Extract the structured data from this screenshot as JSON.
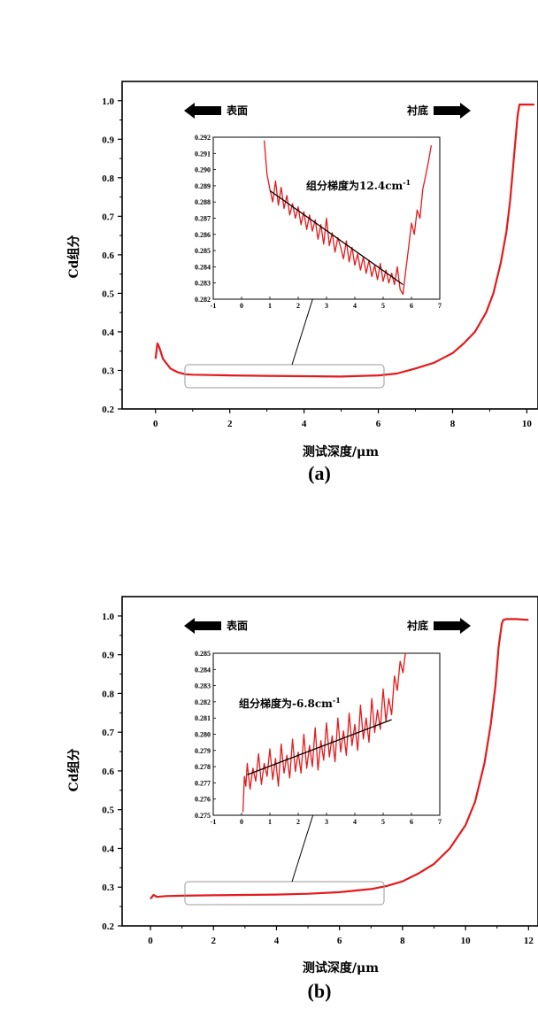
{
  "chart_data": [
    {
      "type": "line",
      "panel_label": "(a)",
      "xlabel": "测试深度/μm",
      "ylabel": "Cd组分",
      "xlim": [
        -0.9,
        10.3
      ],
      "ylim": [
        0.2,
        1.05
      ],
      "x_ticks": [
        0,
        2,
        4,
        6,
        8,
        10
      ],
      "y_ticks": [
        0.2,
        0.3,
        0.4,
        0.5,
        0.6,
        0.7,
        0.8,
        0.9,
        1.0
      ],
      "surface_label": "表面",
      "substrate_label": "衬底",
      "line_color": "#e41a1c",
      "series": [
        {
          "x": [
            0.0,
            0.05,
            0.1,
            0.2,
            0.4,
            0.6,
            0.8,
            1.0,
            1.5,
            2.0,
            3.0,
            4.0,
            5.0,
            6.0,
            6.5,
            7.0,
            7.5,
            8.0,
            8.3,
            8.6,
            8.9,
            9.1,
            9.3,
            9.45,
            9.55,
            9.65,
            9.75,
            9.8,
            10.0,
            10.2
          ],
          "y": [
            0.33,
            0.37,
            0.36,
            0.33,
            0.305,
            0.295,
            0.29,
            0.289,
            0.288,
            0.287,
            0.286,
            0.285,
            0.284,
            0.287,
            0.292,
            0.305,
            0.32,
            0.345,
            0.37,
            0.4,
            0.45,
            0.5,
            0.58,
            0.66,
            0.74,
            0.85,
            0.96,
            0.99,
            0.99,
            0.99
          ]
        }
      ],
      "inset": {
        "xlim": [
          -1,
          7
        ],
        "ylim": [
          0.282,
          0.292
        ],
        "x_ticks": [
          -1,
          0,
          1,
          2,
          3,
          4,
          5,
          6,
          7
        ],
        "y_ticks": [
          0.282,
          0.283,
          0.284,
          0.285,
          0.286,
          0.287,
          0.288,
          0.289,
          0.29,
          0.291,
          0.292
        ],
        "annotation": "组分梯度为12.4cm",
        "annotation_sup": "-1",
        "fit_line": {
          "x": [
            1.0,
            5.7
          ],
          "y": [
            0.2887,
            0.2829
          ]
        },
        "series_x": [
          0.8,
          0.9,
          1.0,
          1.1,
          1.2,
          1.3,
          1.4,
          1.5,
          1.6,
          1.7,
          1.8,
          1.9,
          2.0,
          2.1,
          2.2,
          2.3,
          2.4,
          2.5,
          2.6,
          2.7,
          2.8,
          2.9,
          3.0,
          3.1,
          3.2,
          3.3,
          3.4,
          3.5,
          3.6,
          3.7,
          3.8,
          3.9,
          4.0,
          4.1,
          4.2,
          4.3,
          4.4,
          4.5,
          4.6,
          4.7,
          4.8,
          4.9,
          5.0,
          5.1,
          5.2,
          5.3,
          5.4,
          5.5,
          5.6,
          5.7,
          5.8,
          5.9,
          6.0,
          6.1,
          6.2,
          6.3,
          6.4,
          6.5,
          6.6,
          6.7
        ],
        "series_y": [
          0.2918,
          0.2897,
          0.2888,
          0.288,
          0.2893,
          0.2878,
          0.2889,
          0.2876,
          0.2884,
          0.2872,
          0.2879,
          0.287,
          0.2877,
          0.2866,
          0.2874,
          0.2863,
          0.2872,
          0.2862,
          0.2869,
          0.2857,
          0.2866,
          0.2854,
          0.287,
          0.2853,
          0.2861,
          0.2849,
          0.2858,
          0.2852,
          0.2845,
          0.2856,
          0.2843,
          0.2852,
          0.2841,
          0.2848,
          0.2838,
          0.2846,
          0.2836,
          0.2844,
          0.2834,
          0.2841,
          0.2832,
          0.2842,
          0.2831,
          0.2838,
          0.283,
          0.2836,
          0.2829,
          0.284,
          0.2826,
          0.2823,
          0.2838,
          0.2852,
          0.2867,
          0.286,
          0.2875,
          0.287,
          0.2888,
          0.2896,
          0.2905,
          0.2915
        ]
      }
    },
    {
      "type": "line",
      "panel_label": "(b)",
      "xlabel": "测试深度/μm",
      "ylabel": "Cd组分",
      "xlim": [
        -0.9,
        12.3
      ],
      "ylim": [
        0.2,
        1.05
      ],
      "x_ticks": [
        0,
        2,
        4,
        6,
        8,
        10,
        12
      ],
      "y_ticks": [
        0.2,
        0.3,
        0.4,
        0.5,
        0.6,
        0.7,
        0.8,
        0.9,
        1.0
      ],
      "surface_label": "表面",
      "substrate_label": "衬底",
      "line_color": "#e41a1c",
      "series": [
        {
          "x": [
            0.0,
            0.1,
            0.2,
            0.5,
            1.0,
            2.0,
            3.0,
            4.0,
            5.0,
            6.0,
            7.0,
            7.5,
            8.0,
            8.5,
            9.0,
            9.5,
            10.0,
            10.3,
            10.6,
            10.8,
            10.95,
            11.05,
            11.15,
            11.2,
            11.3,
            11.6,
            12.0
          ],
          "y": [
            0.27,
            0.28,
            0.275,
            0.277,
            0.278,
            0.279,
            0.28,
            0.281,
            0.283,
            0.287,
            0.295,
            0.303,
            0.315,
            0.335,
            0.36,
            0.4,
            0.46,
            0.52,
            0.62,
            0.72,
            0.82,
            0.92,
            0.98,
            0.99,
            0.992,
            0.992,
            0.99
          ]
        }
      ],
      "inset": {
        "xlim": [
          -1,
          7
        ],
        "ylim": [
          0.275,
          0.285
        ],
        "x_ticks": [
          -1,
          0,
          1,
          2,
          3,
          4,
          5,
          6,
          7
        ],
        "y_ticks": [
          0.275,
          0.276,
          0.277,
          0.278,
          0.279,
          0.28,
          0.281,
          0.282,
          0.283,
          0.284,
          0.285
        ],
        "annotation": "组分梯度为-6.8cm",
        "annotation_sup": "-1",
        "fit_line": {
          "x": [
            0.2,
            5.3
          ],
          "y": [
            0.2775,
            0.2809
          ]
        },
        "series_x": [
          0.05,
          0.1,
          0.15,
          0.2,
          0.3,
          0.4,
          0.5,
          0.6,
          0.7,
          0.8,
          0.9,
          1.0,
          1.1,
          1.2,
          1.3,
          1.4,
          1.5,
          1.6,
          1.7,
          1.8,
          1.9,
          2.0,
          2.1,
          2.2,
          2.3,
          2.4,
          2.5,
          2.6,
          2.7,
          2.8,
          2.9,
          3.0,
          3.1,
          3.2,
          3.3,
          3.4,
          3.5,
          3.6,
          3.7,
          3.8,
          3.9,
          4.0,
          4.1,
          4.2,
          4.3,
          4.4,
          4.5,
          4.6,
          4.7,
          4.8,
          4.9,
          5.0,
          5.1,
          5.2,
          5.3,
          5.4,
          5.5,
          5.6,
          5.7,
          5.8
        ],
        "series_y": [
          0.2752,
          0.2774,
          0.2768,
          0.2782,
          0.2766,
          0.2779,
          0.2771,
          0.2788,
          0.2769,
          0.2782,
          0.2774,
          0.2791,
          0.2772,
          0.2785,
          0.2768,
          0.2794,
          0.2776,
          0.2787,
          0.2773,
          0.2797,
          0.2777,
          0.2789,
          0.2776,
          0.28,
          0.2779,
          0.2793,
          0.278,
          0.2804,
          0.2778,
          0.2796,
          0.2784,
          0.2807,
          0.2786,
          0.2799,
          0.2783,
          0.281,
          0.2789,
          0.2802,
          0.2787,
          0.2813,
          0.2793,
          0.2806,
          0.279,
          0.2818,
          0.2797,
          0.281,
          0.2795,
          0.2822,
          0.2801,
          0.2815,
          0.2803,
          0.2828,
          0.2808,
          0.2822,
          0.2812,
          0.2836,
          0.2827,
          0.2845,
          0.2838,
          0.2852
        ]
      }
    }
  ]
}
